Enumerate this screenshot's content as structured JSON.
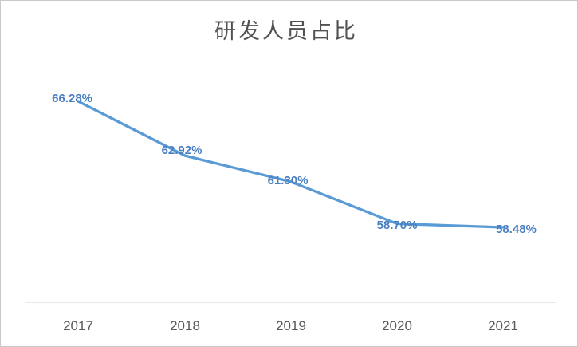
{
  "chart_data": {
    "type": "line",
    "title": "研发人员占比",
    "categories": [
      "2017",
      "2018",
      "2019",
      "2020",
      "2021"
    ],
    "series": [
      {
        "name": "研发人员占比",
        "values": [
          66.28,
          62.92,
          61.3,
          58.7,
          58.48
        ]
      }
    ],
    "data_labels": [
      "66.28%",
      "62.92%",
      "61.30%",
      "58.70%",
      "58.48%"
    ],
    "xlabel": "",
    "ylabel": "",
    "legend_position": "none",
    "grid": false,
    "y_axis_visible": false,
    "x_axis_visible": true,
    "colors": {
      "line": "#5b9bd5",
      "data_label": "#4a7fc1",
      "axis_line": "#d9d9d9",
      "tick_label": "#595959",
      "title": "#515151",
      "background": "#ffffff"
    }
  }
}
